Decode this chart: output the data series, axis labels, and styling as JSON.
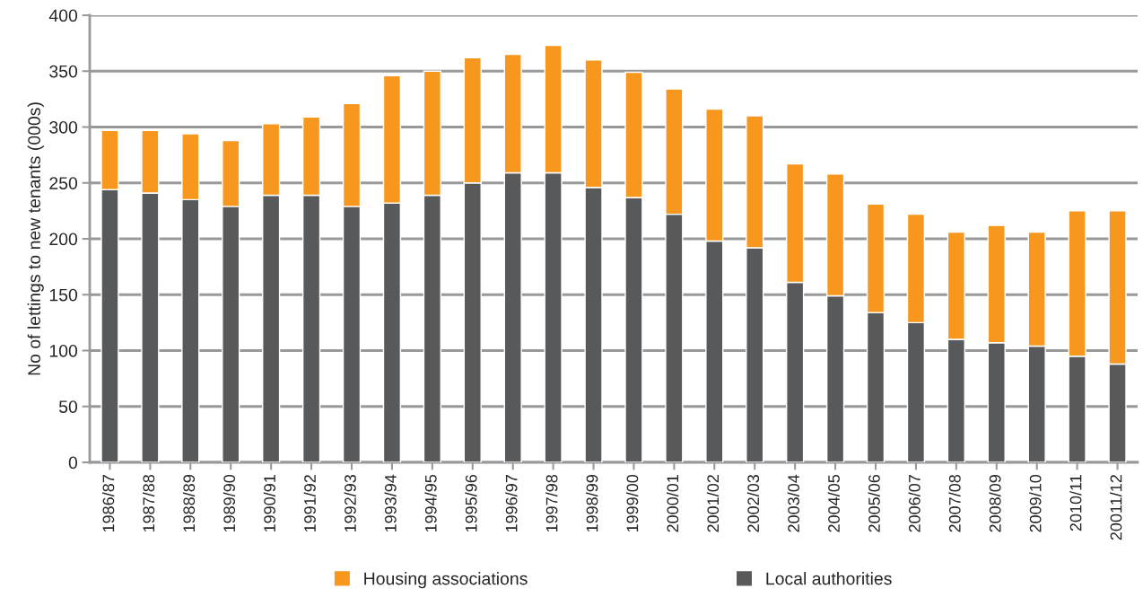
{
  "chart_data": {
    "type": "bar",
    "stacked": true,
    "ylabel": "No of lettings to new tenants (000s)",
    "categories": [
      "1986/87",
      "1987/88",
      "1988/89",
      "1989/90",
      "1990/91",
      "1991/92",
      "1992/93",
      "1993/94",
      "1994/95",
      "1995/96",
      "1996/97",
      "1997/98",
      "1998/99",
      "1999/00",
      "2000/01",
      "2001/02",
      "2002/03",
      "2003/04",
      "2004/05",
      "2005/06",
      "2006/07",
      "2007/08",
      "2008/09",
      "2009/10",
      "2010/11",
      "20011/12"
    ],
    "series": [
      {
        "name": "Local authorities",
        "color": "#58595b",
        "values": [
          244,
          241,
          235,
          229,
          239,
          239,
          229,
          232,
          239,
          250,
          259,
          259,
          246,
          237,
          222,
          198,
          192,
          161,
          149,
          134,
          125,
          110,
          107,
          104,
          95,
          88
        ]
      },
      {
        "name": "Housing associations",
        "color": "#f7971e",
        "values": [
          53,
          56,
          59,
          59,
          64,
          70,
          92,
          114,
          111,
          112,
          106,
          114,
          114,
          112,
          112,
          118,
          118,
          106,
          109,
          97,
          97,
          96,
          105,
          102,
          130,
          137
        ]
      }
    ],
    "ylim": [
      0,
      400
    ],
    "yticks": [
      0,
      50,
      100,
      150,
      200,
      250,
      300,
      350,
      400
    ],
    "grid": "y",
    "legend": "bottom"
  }
}
